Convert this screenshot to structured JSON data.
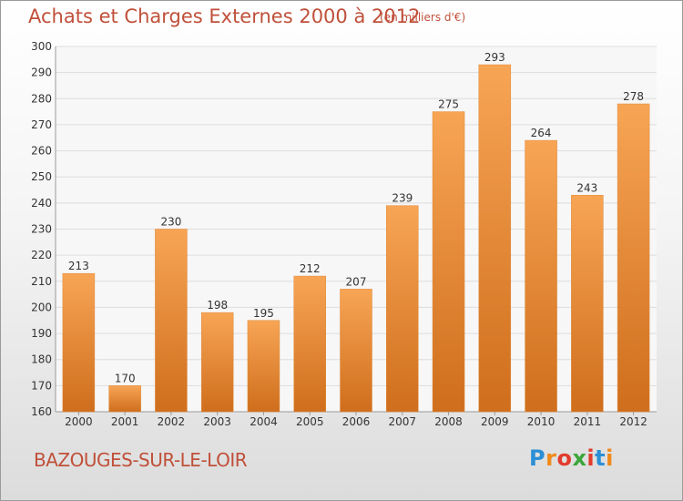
{
  "chart_data": {
    "type": "bar",
    "title": "Achats et Charges Externes 2000 à 2012",
    "subtitle": "(en milliers d'€)",
    "categories": [
      "2000",
      "2001",
      "2002",
      "2003",
      "2004",
      "2005",
      "2006",
      "2007",
      "2008",
      "2009",
      "2010",
      "2011",
      "2012"
    ],
    "values": [
      213,
      170,
      230,
      198,
      195,
      212,
      207,
      239,
      275,
      293,
      264,
      243,
      278
    ],
    "ylim": [
      160,
      300
    ],
    "yticks": [
      160,
      170,
      180,
      190,
      200,
      210,
      220,
      230,
      240,
      250,
      260,
      270,
      280,
      290,
      300
    ],
    "grid": true,
    "bar_color_top": "#f7a555",
    "bar_color_bottom": "#cf6e1c"
  },
  "footer": {
    "place": "BAZOUGES-SUR-LE-LOIR",
    "brand_letters": [
      {
        "ch": "P",
        "color": "#2b8fd6"
      },
      {
        "ch": "r",
        "color": "#f08a1a"
      },
      {
        "ch": "o",
        "color": "#e23b2c"
      },
      {
        "ch": "x",
        "color": "#3aa63a"
      },
      {
        "ch": "i",
        "color": "#e23b2c"
      },
      {
        "ch": "t",
        "color": "#2b8fd6"
      },
      {
        "ch": "i",
        "color": "#f08a1a"
      }
    ]
  }
}
